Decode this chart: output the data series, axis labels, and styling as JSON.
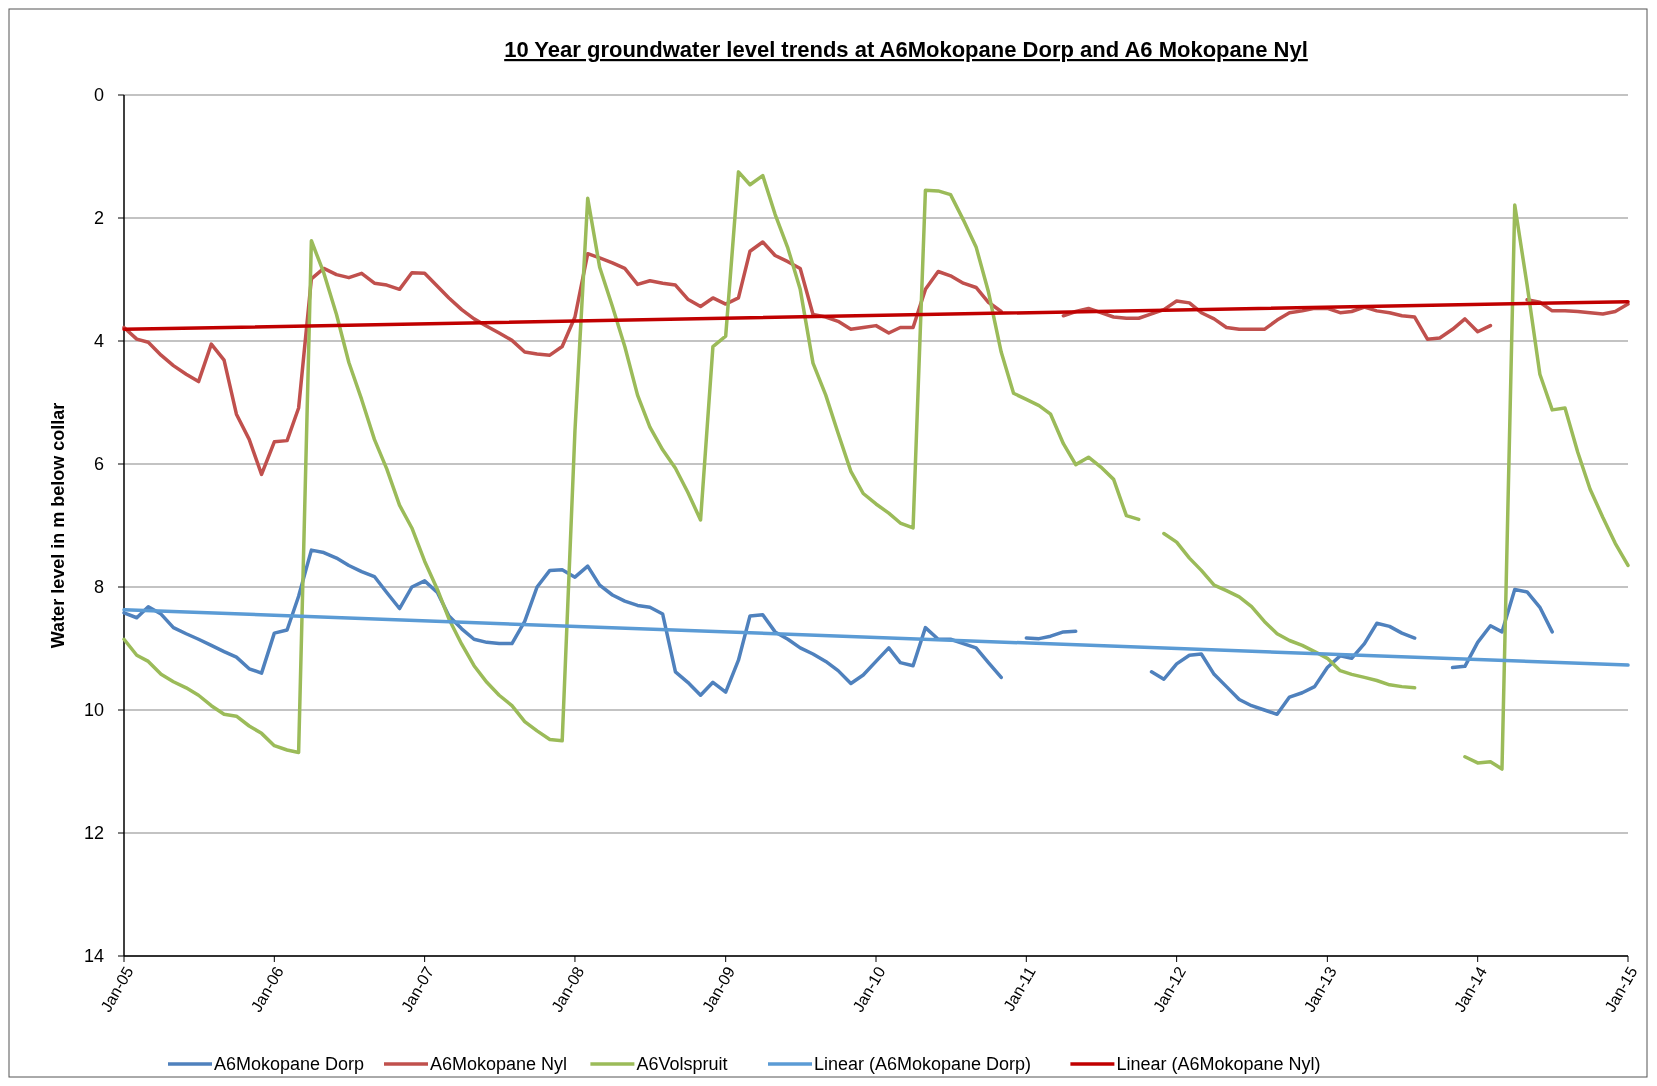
{
  "chart_data": {
    "type": "line",
    "title": "10 Year groundwater level trends at A6Mokopane Dorp and  A6 Mokopane Nyl",
    "ylabel": "Water level in m below collar",
    "x": [
      "2005-01",
      "2005-02",
      "2005-03",
      "2005-04",
      "2005-05",
      "2005-06",
      "2005-07",
      "2005-08",
      "2005-09",
      "2005-10",
      "2005-11",
      "2005-12",
      "2006-01",
      "2006-02",
      "2006-03",
      "2006-04",
      "2006-05",
      "2006-06",
      "2006-07",
      "2006-08",
      "2006-09",
      "2006-10",
      "2006-11",
      "2006-12",
      "2007-01",
      "2007-02",
      "2007-03",
      "2007-04",
      "2007-05",
      "2007-06",
      "2007-07",
      "2007-08",
      "2007-09",
      "2007-10",
      "2007-11",
      "2007-12",
      "2008-01",
      "2008-02",
      "2008-03",
      "2008-04",
      "2008-05",
      "2008-06",
      "2008-07",
      "2008-08",
      "2008-09",
      "2008-10",
      "2008-11",
      "2008-12",
      "2009-01",
      "2009-02",
      "2009-03",
      "2009-04",
      "2009-05",
      "2009-06",
      "2009-07",
      "2009-08",
      "2009-09",
      "2009-10",
      "2009-11",
      "2009-12",
      "2010-01",
      "2010-02",
      "2010-03",
      "2010-04",
      "2010-05",
      "2010-06",
      "2010-07",
      "2010-08",
      "2010-09",
      "2010-10",
      "2010-11",
      "2010-12",
      "2011-01",
      "2011-02",
      "2011-03",
      "2011-04",
      "2011-05",
      "2011-06",
      "2011-07",
      "2011-08",
      "2011-09",
      "2011-10",
      "2011-11",
      "2011-12",
      "2012-01",
      "2012-02",
      "2012-03",
      "2012-04",
      "2012-05",
      "2012-06",
      "2012-07",
      "2012-08",
      "2012-09",
      "2012-10",
      "2012-11",
      "2012-12",
      "2013-01",
      "2013-02",
      "2013-03",
      "2013-04",
      "2013-05",
      "2013-06",
      "2013-07",
      "2013-08",
      "2013-09",
      "2013-10",
      "2013-11",
      "2013-12",
      "2014-01",
      "2014-02",
      "2014-03",
      "2014-04",
      "2014-05",
      "2014-06",
      "2014-07",
      "2014-08",
      "2014-09",
      "2014-10",
      "2014-11",
      "2014-12",
      "2015-01"
    ],
    "series": [
      {
        "name": "A6Mokopane Dorp",
        "color": "#4f81bd",
        "values": [
          8.42,
          8.5,
          8.32,
          8.44,
          8.66,
          8.76,
          8.85,
          8.95,
          9.05,
          9.14,
          9.33,
          9.4,
          8.75,
          8.7,
          8.15,
          7.4,
          7.44,
          7.53,
          7.65,
          7.75,
          7.83,
          8.09,
          8.35,
          8.0,
          7.9,
          8.09,
          8.47,
          8.68,
          8.85,
          8.9,
          8.92,
          8.92,
          8.56,
          8.0,
          7.73,
          7.72,
          7.84,
          7.66,
          7.97,
          8.13,
          8.23,
          8.3,
          8.33,
          8.44,
          9.38,
          9.55,
          9.76,
          9.55,
          9.71,
          9.19,
          8.47,
          8.45,
          8.73,
          8.85,
          8.99,
          9.09,
          9.21,
          9.36,
          9.57,
          9.43,
          9.21,
          8.99,
          9.23,
          9.28,
          8.66,
          8.85,
          8.85,
          8.92,
          8.99,
          9.23,
          9.47,
          null,
          8.83,
          8.84,
          8.8,
          8.73,
          8.72,
          null,
          null,
          null,
          null,
          null,
          9.38,
          9.5,
          9.25,
          9.11,
          9.09,
          9.42,
          9.62,
          9.83,
          9.93,
          10.0,
          10.07,
          9.79,
          9.72,
          9.62,
          9.31,
          9.12,
          9.16,
          8.92,
          8.59,
          8.64,
          8.75,
          8.83,
          null,
          null,
          9.31,
          9.29,
          8.9,
          8.63,
          8.73,
          8.04,
          8.08,
          8.33,
          8.73,
          null,
          null,
          null,
          null,
          null,
          null
        ]
      },
      {
        "name": "A6Mokopane Nyl",
        "color": "#c0504d",
        "values": [
          3.78,
          3.97,
          4.02,
          4.23,
          4.4,
          4.54,
          4.66,
          4.05,
          4.31,
          5.19,
          5.6,
          6.17,
          5.64,
          5.62,
          5.09,
          2.99,
          2.82,
          2.92,
          2.97,
          2.9,
          3.06,
          3.09,
          3.16,
          2.89,
          2.9,
          3.11,
          3.3,
          3.49,
          3.64,
          3.76,
          3.87,
          3.99,
          4.18,
          4.21,
          4.23,
          4.09,
          3.61,
          2.58,
          2.65,
          2.73,
          2.82,
          3.08,
          3.02,
          3.06,
          3.09,
          3.32,
          3.44,
          3.3,
          3.4,
          3.3,
          2.54,
          2.39,
          2.61,
          2.71,
          2.82,
          3.57,
          3.61,
          3.68,
          3.81,
          3.78,
          3.75,
          3.87,
          3.78,
          3.78,
          3.16,
          2.87,
          2.94,
          3.06,
          3.13,
          3.37,
          3.52,
          null,
          null,
          null,
          null,
          3.59,
          3.52,
          3.47,
          3.54,
          3.61,
          3.63,
          3.63,
          3.56,
          3.49,
          3.35,
          3.38,
          3.54,
          3.64,
          3.78,
          3.81,
          3.81,
          3.81,
          3.66,
          3.54,
          3.51,
          3.47,
          3.47,
          3.54,
          3.52,
          3.45,
          3.51,
          3.54,
          3.59,
          3.61,
          3.97,
          3.95,
          3.81,
          3.64,
          3.85,
          3.75,
          null,
          null,
          3.33,
          3.37,
          3.51,
          3.51,
          3.52,
          3.54,
          3.56,
          3.52,
          3.4
        ]
      },
      {
        "name": "A6Volspruit",
        "color": "#9bbb59",
        "values": [
          8.85,
          9.11,
          9.21,
          9.42,
          9.54,
          9.64,
          9.76,
          9.93,
          10.07,
          10.1,
          10.26,
          10.38,
          10.58,
          10.65,
          10.69,
          2.37,
          2.89,
          3.57,
          4.35,
          4.95,
          5.6,
          6.08,
          6.67,
          7.04,
          7.58,
          8.04,
          8.52,
          8.93,
          9.28,
          9.55,
          9.76,
          9.93,
          10.19,
          10.34,
          10.48,
          10.5,
          5.46,
          1.68,
          2.8,
          3.44,
          4.09,
          4.88,
          5.4,
          5.77,
          6.07,
          6.46,
          6.91,
          4.09,
          3.92,
          1.25,
          1.46,
          1.31,
          1.94,
          2.49,
          3.16,
          4.36,
          4.88,
          5.5,
          6.12,
          6.48,
          6.65,
          6.8,
          6.96,
          7.04,
          1.55,
          1.56,
          1.62,
          2.03,
          2.47,
          3.2,
          4.18,
          4.85,
          4.95,
          5.05,
          5.19,
          5.67,
          6.01,
          5.89,
          6.05,
          6.25,
          6.84,
          6.9,
          null,
          7.13,
          7.27,
          7.53,
          7.73,
          7.97,
          8.06,
          8.16,
          8.32,
          8.56,
          8.76,
          8.87,
          8.95,
          9.05,
          9.16,
          9.36,
          9.42,
          9.47,
          9.52,
          9.59,
          9.62,
          9.64,
          null,
          null,
          null,
          10.76,
          10.86,
          10.84,
          10.96,
          1.79,
          3.09,
          4.54,
          5.12,
          5.09,
          5.81,
          6.41,
          6.87,
          7.29,
          7.65
        ]
      },
      {
        "name": "Linear (A6Mokopane Dorp)",
        "color": "#5b9bd5",
        "x": [
          "2005-01",
          "2015-01"
        ],
        "values": [
          8.37,
          9.27
        ]
      },
      {
        "name": "Linear (A6Mokopane Nyl)",
        "color": "#c00000",
        "x": [
          "2005-01",
          "2015-01"
        ],
        "values": [
          3.81,
          3.36
        ]
      }
    ],
    "ylim": [
      14,
      0
    ],
    "yticks": [
      0,
      2,
      4,
      6,
      8,
      10,
      12,
      14
    ],
    "xlim": [
      "2005-01",
      "2015-01"
    ],
    "xticks": [
      {
        "value": "2005-01",
        "label": "Jan-05"
      },
      {
        "value": "2006-01",
        "label": "Jan-06"
      },
      {
        "value": "2007-01",
        "label": "Jan-07"
      },
      {
        "value": "2008-01",
        "label": "Jan-08"
      },
      {
        "value": "2009-01",
        "label": "Jan-09"
      },
      {
        "value": "2010-01",
        "label": "Jan-10"
      },
      {
        "value": "2011-01",
        "label": "Jan-11"
      },
      {
        "value": "2012-01",
        "label": "Jan-12"
      },
      {
        "value": "2013-01",
        "label": "Jan-13"
      },
      {
        "value": "2014-01",
        "label": "Jan-14"
      },
      {
        "value": "2015-01",
        "label": "Jan-15"
      }
    ],
    "grid": "y",
    "legend": "bottom",
    "marker": "none",
    "line_style": "solid"
  }
}
